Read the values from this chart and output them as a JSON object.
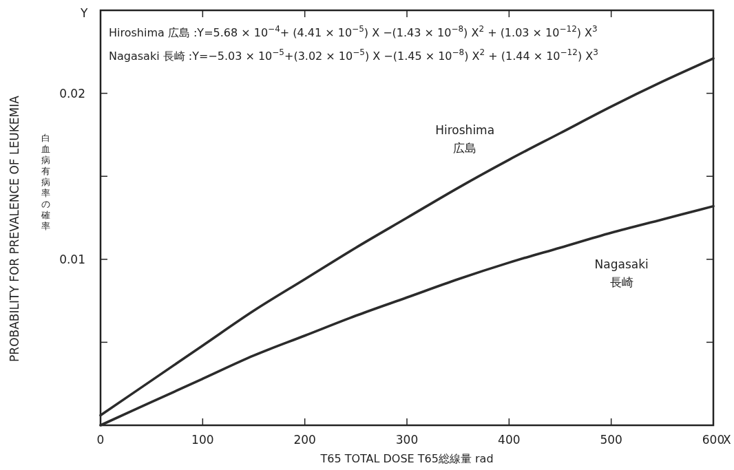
{
  "chart_data": {
    "type": "line",
    "xlabel": "T65 TOTAL DOSE T65総線量 rad",
    "ylabel": "PROBABILITY FOR PREVALENCE OF LEUKEMIA",
    "x": [
      0,
      50,
      100,
      150,
      200,
      250,
      300,
      350,
      400,
      450,
      500,
      550,
      600
    ],
    "series": [
      {
        "name": "Hiroshima 広島",
        "color": "#2b2b2b",
        "values": [
          0.0006,
          0.0027,
          0.0048,
          0.0069,
          0.0088,
          0.0107,
          0.0125,
          0.0143,
          0.016,
          0.0176,
          0.0192,
          0.0207,
          0.0221
        ]
      },
      {
        "name": "Nagasaki 長崎",
        "color": "#2b2b2b",
        "values": [
          0.0,
          0.0014,
          0.0028,
          0.0042,
          0.0054,
          0.0066,
          0.0077,
          0.0088,
          0.0098,
          0.0107,
          0.0116,
          0.0124,
          0.0132
        ]
      }
    ],
    "xlim": [
      0,
      600
    ],
    "ylim": [
      0,
      0.025
    ],
    "xticks": [
      0,
      100,
      200,
      300,
      400,
      500,
      600
    ],
    "yticks": [
      {
        "value": 0.005,
        "label": null
      },
      0.01,
      {
        "value": 0.015,
        "label": null
      },
      0.02
    ],
    "grid": false,
    "marker": "none",
    "line_style": "solid",
    "annotations": [
      "Hiroshima 広島 :Y=5.68 × 10$^{−4}$+ (4.41 × 10$^{−5}$) X −(1.43 × 10$^{−8}$) X$^{2}$ + (1.03 × 10$^{−12}$) X$^{3}$",
      "Nagasaki 長崎 :Y=−5.03 × 10$^{−5}$+(3.02 × 10$^{−5}$) X −(1.45 × 10$^{−8}$) X$^{2}$ + (1.44 × 10$^{−12}$) X$^{3}$",
      "白血病有病率の確率",
      "Y",
      "X"
    ]
  }
}
